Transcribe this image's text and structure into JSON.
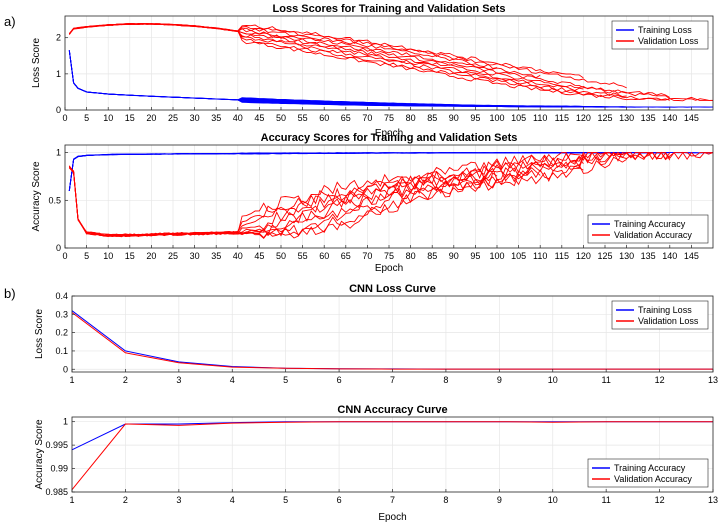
{
  "panel_labels": [
    "a)",
    "b)"
  ],
  "chart_data": [
    {
      "type": "line",
      "title": "Loss Scores for Training and Validation Sets",
      "xlabel": "Epoch",
      "ylabel": "Loss Score",
      "xlim": [
        0,
        150
      ],
      "ylim": [
        0,
        2.6
      ],
      "x_ticks": [
        0,
        5,
        10,
        15,
        20,
        25,
        30,
        35,
        40,
        45,
        50,
        55,
        60,
        65,
        70,
        75,
        80,
        85,
        90,
        95,
        100,
        105,
        110,
        115,
        120,
        125,
        130,
        135,
        140,
        145
      ],
      "y_ticks": [
        0,
        1,
        2
      ],
      "legend": "top-right",
      "grid": true,
      "series": [
        {
          "name": "Training Loss",
          "color": "#0000ff",
          "runs": 10,
          "x": [
            1,
            2,
            3,
            5,
            10,
            20,
            30,
            40,
            50,
            60,
            70,
            80,
            90,
            100,
            110,
            120,
            130,
            140,
            150
          ],
          "y": [
            1.65,
            0.75,
            0.6,
            0.5,
            0.44,
            0.38,
            0.33,
            0.28,
            0.24,
            0.2,
            0.17,
            0.14,
            0.12,
            0.11,
            0.1,
            0.09,
            0.085,
            0.08,
            0.08
          ]
        },
        {
          "name": "Validation Loss",
          "color": "#ff0000",
          "runs": 10,
          "x": [
            1,
            2,
            5,
            10,
            15,
            20,
            25,
            30,
            35,
            40,
            45,
            50,
            60,
            70,
            80,
            90,
            100,
            110,
            120,
            130,
            140,
            150
          ],
          "y": [
            2.1,
            2.25,
            2.3,
            2.35,
            2.38,
            2.38,
            2.36,
            2.32,
            2.26,
            2.18,
            2.1,
            2.02,
            1.85,
            1.65,
            1.45,
            1.25,
            1.05,
            0.85,
            0.65,
            0.5,
            0.38,
            0.3
          ]
        }
      ]
    },
    {
      "type": "line",
      "title": "Accuracy Scores for Training and Validation Sets",
      "xlabel": "Epoch",
      "ylabel": "Accuracy Score",
      "xlim": [
        0,
        150
      ],
      "ylim": [
        0,
        1.08
      ],
      "x_ticks": [
        0,
        5,
        10,
        15,
        20,
        25,
        30,
        35,
        40,
        45,
        50,
        55,
        60,
        65,
        70,
        75,
        80,
        85,
        90,
        95,
        100,
        105,
        110,
        115,
        120,
        125,
        130,
        135,
        140,
        145
      ],
      "y_ticks": [
        0,
        0.5,
        1
      ],
      "y_tick_labels": [
        "0",
        "0.5",
        "1"
      ],
      "legend": "bottom-right",
      "grid": true,
      "series": [
        {
          "name": "Training Accuracy",
          "color": "#0000ff",
          "runs": 10,
          "x": [
            1,
            2,
            3,
            5,
            10,
            20,
            40,
            60,
            80,
            100,
            120,
            150
          ],
          "y": [
            0.6,
            0.93,
            0.96,
            0.97,
            0.98,
            0.985,
            0.99,
            0.995,
            0.997,
            0.998,
            0.999,
            1.0
          ]
        },
        {
          "name": "Validation Accuracy",
          "color": "#ff0000",
          "runs": 10,
          "x": [
            1,
            2,
            3,
            5,
            10,
            20,
            30,
            40,
            45,
            50,
            55,
            60,
            65,
            70,
            75,
            80,
            90,
            100,
            110,
            120,
            130,
            140,
            150
          ],
          "y": [
            0.85,
            0.8,
            0.3,
            0.16,
            0.13,
            0.14,
            0.15,
            0.16,
            0.18,
            0.22,
            0.3,
            0.38,
            0.45,
            0.52,
            0.58,
            0.63,
            0.7,
            0.76,
            0.83,
            0.9,
            0.96,
            0.99,
            1.0
          ]
        }
      ]
    },
    {
      "type": "line",
      "title": "CNN Loss Curve",
      "xlabel": "",
      "ylabel": "Loss Score",
      "xlim": [
        1,
        13
      ],
      "ylim": [
        -0.015,
        0.4
      ],
      "x_ticks": [
        1,
        2,
        3,
        4,
        5,
        6,
        7,
        8,
        9,
        10,
        11,
        12,
        13
      ],
      "y_ticks": [
        0,
        0.1,
        0.2,
        0.3,
        0.4
      ],
      "y_tick_labels": [
        "0",
        "0.1",
        "0.2",
        "0.3",
        "0.4"
      ],
      "legend": "top-right",
      "grid": true,
      "series": [
        {
          "name": "Training Loss",
          "color": "#0000ff",
          "x": [
            1,
            2,
            3,
            4,
            5,
            6,
            7,
            8,
            9,
            10,
            11,
            12,
            13
          ],
          "y": [
            0.32,
            0.1,
            0.04,
            0.015,
            0.006,
            0.003,
            0.002,
            0.001,
            0.001,
            0.001,
            0.001,
            0.001,
            0.001
          ]
        },
        {
          "name": "Validation Loss",
          "color": "#ff0000",
          "x": [
            1,
            2,
            3,
            4,
            5,
            6,
            7,
            8,
            9,
            10,
            11,
            12,
            13
          ],
          "y": [
            0.31,
            0.09,
            0.035,
            0.012,
            0.005,
            0.002,
            0.001,
            0.001,
            0.001,
            0.001,
            0.001,
            0.001,
            0.001
          ]
        }
      ]
    },
    {
      "type": "line",
      "title": "CNN Accuracy Curve",
      "xlabel": "Epoch",
      "ylabel": "Accuracy Score",
      "xlim": [
        1,
        13
      ],
      "ylim": [
        0.985,
        1.001
      ],
      "x_ticks": [
        1,
        2,
        3,
        4,
        5,
        6,
        7,
        8,
        9,
        10,
        11,
        12,
        13
      ],
      "y_ticks": [
        0.985,
        0.99,
        0.995,
        1
      ],
      "y_tick_labels": [
        "0.985",
        "0.99",
        "0.995",
        "1"
      ],
      "legend": "bottom-right",
      "grid": true,
      "series": [
        {
          "name": "Training Accuracy",
          "color": "#0000ff",
          "x": [
            1,
            2,
            3,
            4,
            5,
            6,
            7,
            8,
            9,
            10,
            11,
            12,
            13
          ],
          "y": [
            0.994,
            0.9995,
            0.9995,
            0.9998,
            1.0,
            1.0,
            1.0,
            1.0,
            1.0,
            1.0,
            1.0,
            1.0,
            1.0
          ]
        },
        {
          "name": "Validation Accuracy",
          "color": "#ff0000",
          "x": [
            1,
            2,
            3,
            4,
            5,
            6,
            7,
            8,
            9,
            10,
            11,
            12,
            13
          ],
          "y": [
            0.9855,
            0.9995,
            0.9992,
            0.9997,
            0.9999,
            1.0,
            1.0,
            1.0,
            1.0,
            0.9999,
            1.0,
            1.0,
            1.0
          ]
        }
      ]
    }
  ]
}
